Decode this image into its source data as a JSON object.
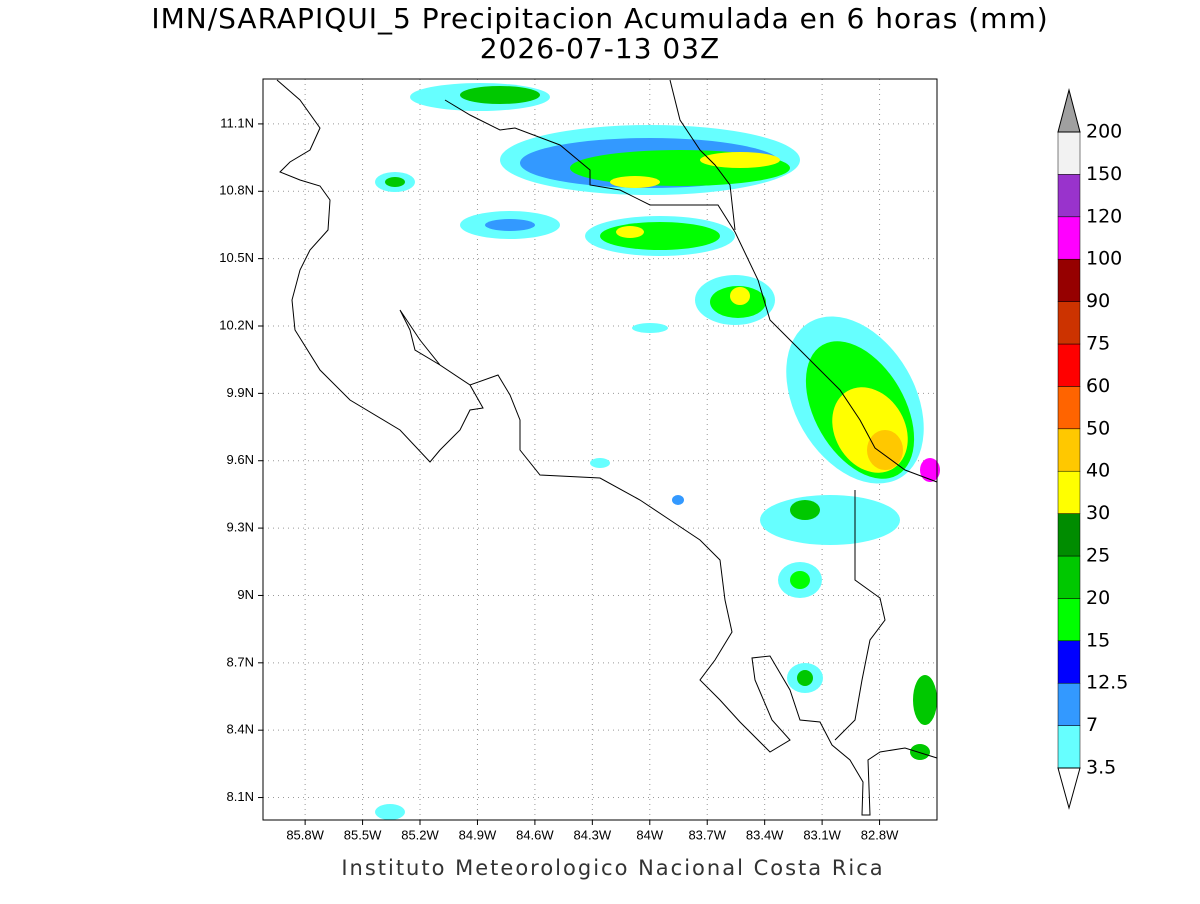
{
  "map": {
    "title": "IMN/SARAPIQUI_5 Precipitacion Acumulada en 6 horas (mm)",
    "subtitle": "2026-07-13 03Z",
    "footer": "Instituto Meteorologico Nacional Costa Rica",
    "lonlim": [
      -86.02,
      -82.5
    ],
    "latlim": [
      8.0,
      11.3
    ],
    "xticks": [
      {
        "value": -85.8,
        "label": "85.8W"
      },
      {
        "value": -85.5,
        "label": "85.5W"
      },
      {
        "value": -85.2,
        "label": "85.2W"
      },
      {
        "value": -84.9,
        "label": "84.9W"
      },
      {
        "value": -84.6,
        "label": "84.6W"
      },
      {
        "value": -84.3,
        "label": "84.3W"
      },
      {
        "value": -84.0,
        "label": "84W"
      },
      {
        "value": -83.7,
        "label": "83.7W"
      },
      {
        "value": -83.4,
        "label": "83.4W"
      },
      {
        "value": -83.1,
        "label": "83.1W"
      },
      {
        "value": -82.8,
        "label": "82.8W"
      }
    ],
    "yticks": [
      {
        "value": 8.1,
        "label": "8.1N"
      },
      {
        "value": 8.4,
        "label": "8.4N"
      },
      {
        "value": 8.7,
        "label": "8.7N"
      },
      {
        "value": 9.0,
        "label": "9N"
      },
      {
        "value": 9.3,
        "label": "9.3N"
      },
      {
        "value": 9.6,
        "label": "9.6N"
      },
      {
        "value": 9.9,
        "label": "9.9N"
      },
      {
        "value": 10.2,
        "label": "10.2N"
      },
      {
        "value": 10.5,
        "label": "10.5N"
      },
      {
        "value": 10.8,
        "label": "10.8N"
      },
      {
        "value": 11.1,
        "label": "11.1N"
      }
    ],
    "grid": true,
    "legend": {
      "levels": [
        3.5,
        7,
        12.5,
        15,
        20,
        25,
        30,
        40,
        50,
        60,
        75,
        90,
        100,
        120,
        150,
        200
      ],
      "colors": [
        "#66ffff",
        "#3399ff",
        "#0000ff",
        "#00ff00",
        "#00c800",
        "#008c00",
        "#ffff00",
        "#ffc800",
        "#ff6400",
        "#ff0000",
        "#cc3300",
        "#960000",
        "#ff00ff",
        "#9933cc",
        "#f2f2f2"
      ],
      "below_color": "#ffffff",
      "above_color": "#a0a0a0"
    }
  }
}
